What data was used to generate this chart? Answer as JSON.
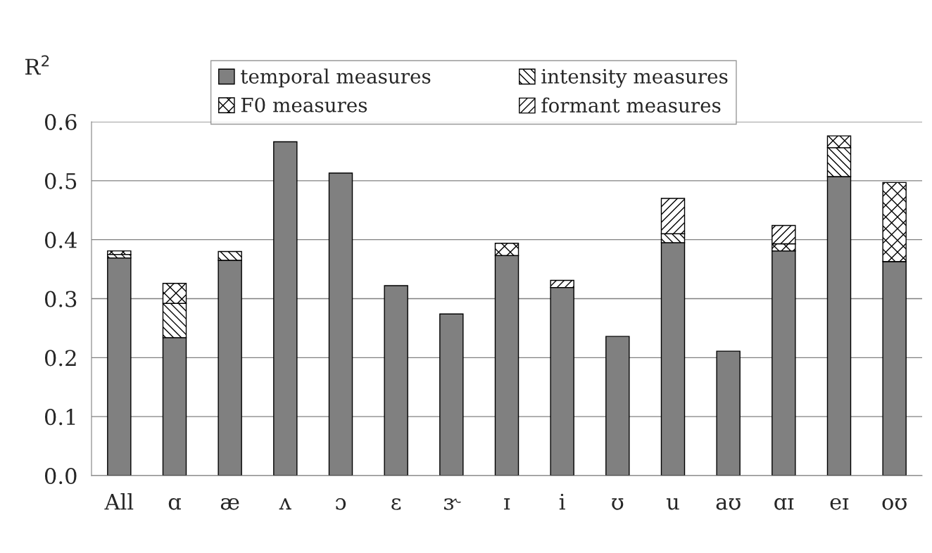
{
  "chart_data": {
    "type": "bar",
    "stacked": true,
    "ylabel": "R$^{2}$",
    "categories": [
      "All",
      "ɑ",
      "æ",
      "ʌ",
      "ɔ",
      "ɛ",
      "ɝ",
      "ɪ",
      "i",
      "ʊ",
      "u",
      "aʊ",
      "ɑɪ",
      "eɪ",
      "oʊ"
    ],
    "series": [
      {
        "name": "temporal measures",
        "color": "#808080",
        "values": [
          0.369,
          0.234,
          0.365,
          0.566,
          0.513,
          0.322,
          0.274,
          0.373,
          0.319,
          0.236,
          0.395,
          0.211,
          0.381,
          0.507,
          0.363
        ]
      },
      {
        "name": "intensity measures",
        "color": "#000000",
        "values": [
          0.006,
          0.058,
          0.015,
          null,
          null,
          null,
          null,
          null,
          null,
          null,
          0.015,
          null,
          null,
          0.049,
          null
        ]
      },
      {
        "name": "F0 measures",
        "color": "#000000",
        "values": [
          0.006,
          0.034,
          null,
          null,
          null,
          null,
          null,
          0.021,
          null,
          null,
          null,
          null,
          0.012,
          0.02,
          0.134
        ]
      },
      {
        "name": "formant measures",
        "color": "#000000",
        "values": [
          null,
          null,
          null,
          null,
          null,
          null,
          null,
          null,
          0.012,
          null,
          0.06,
          null,
          0.031,
          null,
          null
        ]
      }
    ],
    "ylim": [
      0,
      0.6
    ],
    "yticks": [
      {
        "value": 0,
        "label": "0.0"
      },
      0.1,
      0.2,
      0.3,
      0.4,
      0.5,
      0.6
    ],
    "grid": "y",
    "legend": "top"
  }
}
